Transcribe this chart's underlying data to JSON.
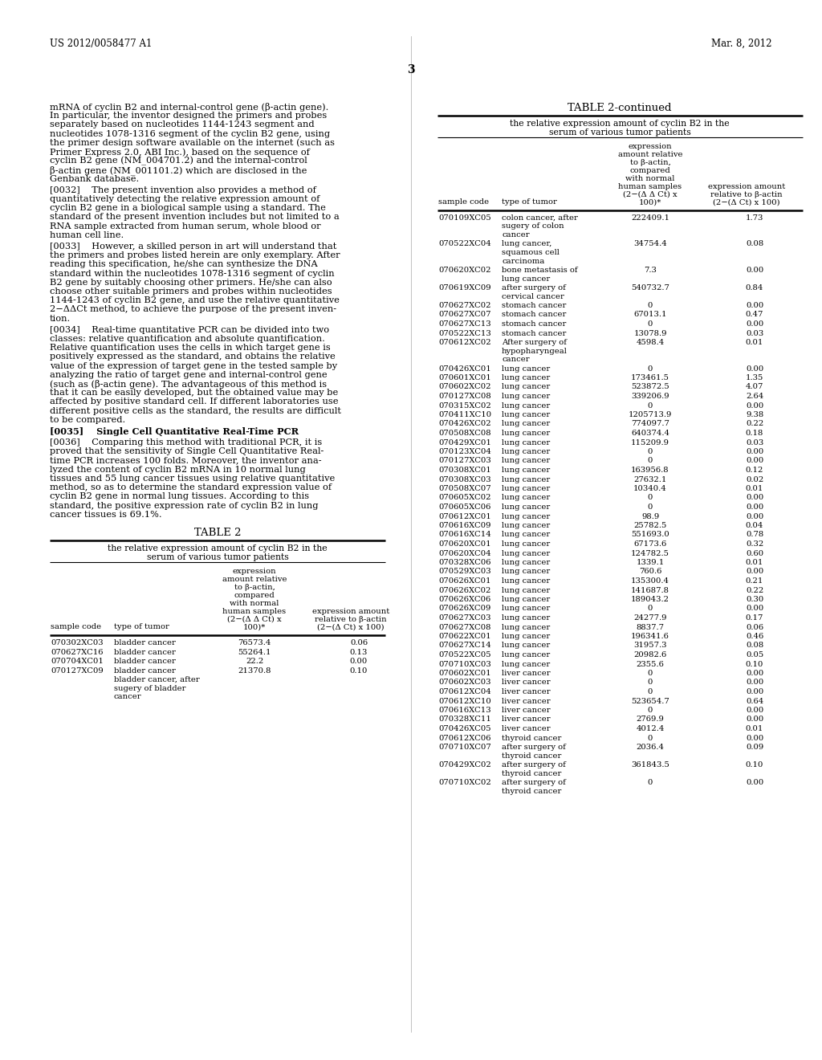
{
  "header_left": "US 2012/0058477 A1",
  "header_right": "Mar. 8, 2012",
  "page_number": "3",
  "bg_color": "#ffffff",
  "left_paragraphs": [
    "mRNA of cyclin B2 and internal-control gene (β-actin gene).\nIn particular, the inventor designed the primers and probes\nseparately based on nucleotides 1144-1243 segment and\nnucleotides 1078-1316 segment of the cyclin B2 gene, using\nthe primer design software available on the internet (such as\nPrimer Express 2.0, ABI Inc.), based on the sequence of\ncyclin B2 gene (NM_004701.2) and the internal-control\nβ-actin gene (NM_001101.2) which are disclosed in the\nGenbank database.",
    "[0032]    The present invention also provides a method of\nquantitatively detecting the relative expression amount of\ncyclin B2 gene in a biological sample using a standard. The\nstandard of the present invention includes but not limited to a\nRNA sample extracted from human serum, whole blood or\nhuman cell line.",
    "[0033]    However, a skilled person in art will understand that\nthe primers and probes listed herein are only exemplary. After\nreading this specification, he/she can synthesize the DNA\nstandard within the nucleotides 1078-1316 segment of cyclin\nB2 gene by suitably choosing other primers. He/she can also\nchoose other suitable primers and probes within nucleotides\n1144-1243 of cyclin B2 gene, and use the relative quantitative\n2−ΔΔCt method, to achieve the purpose of the present inven-\ntion.",
    "[0034]    Real-time quantitative PCR can be divided into two\nclasses: relative quantification and absolute quantification.\nRelative quantification uses the cells in which target gene is\npositively expressed as the standard, and obtains the relative\nvalue of the expression of target gene in the tested sample by\nanalyzing the ratio of target gene and internal-control gene\n(such as (β-actin gene). The advantageous of this method is\nthat it can be easily developed, but the obtained value may be\naffected by positive standard cell. If different laboratories use\ndifferent positive cells as the standard, the results are difficult\nto be compared.",
    "[0035]    Single Cell Quantitative Real-Time PCR",
    "[0036]    Comparing this method with traditional PCR, it is\nproved that the sensitivity of Single Cell Quantitative Real-\ntime PCR increases 100 folds. Moreover, the inventor ana-\nlyzed the content of cyclin B2 mRNA in 10 normal lung\ntissues and 55 lung cancer tissues using relative quantitative\nmethod, so as to determine the standard expression value of\ncyclin B2 gene in normal lung tissues. According to this\nstandard, the positive expression rate of cyclin B2 in lung\ncancer tissues is 69.1%."
  ],
  "table2_title": "TABLE 2",
  "table2_subtitle_1": "the relative expression amount of cyclin B2 in the",
  "table2_subtitle_2": "serum of various tumor patients",
  "table2cont_title": "TABLE 2-continued",
  "table2cont_subtitle_1": "the relative expression amount of cyclin B2 in the",
  "table2cont_subtitle_2": "serum of various tumor patients",
  "ch_expr": [
    "expression",
    "amount relative",
    "to β-actin,",
    "compared",
    "with normal",
    "human samples",
    "(2−(Δ Δ Ct) x",
    "100)*"
  ],
  "ch_expr2": [
    "expression amount",
    "relative to β-actin",
    "(2−(Δ Ct) x 100)"
  ],
  "table2_data": [
    [
      "070302XC03",
      "bladder cancer",
      "76573.4",
      "0.06"
    ],
    [
      "070627XC16",
      "bladder cancer",
      "55264.1",
      "0.13"
    ],
    [
      "070704XC01",
      "bladder cancer",
      "22.2",
      "0.00"
    ],
    [
      "070127XC09",
      "bladder cancer",
      "21370.8",
      "0.10"
    ],
    [
      "",
      "bladder cancer, after\nsugery of bladder\ncancer",
      "",
      ""
    ]
  ],
  "table_right_data": [
    [
      "070109XC05",
      "colon cancer, after\nsugery of colon\ncancer",
      "222409.1",
      "1.73"
    ],
    [
      "070522XC04",
      "lung cancer,\nsquamous cell\ncarcinoma",
      "34754.4",
      "0.08"
    ],
    [
      "070620XC02",
      "bone metastasis of\nlung cancer",
      "7.3",
      "0.00"
    ],
    [
      "070619XC09",
      "after surgery of\ncervical cancer",
      "540732.7",
      "0.84"
    ],
    [
      "070627XC02",
      "stomach cancer",
      "0",
      "0.00"
    ],
    [
      "070627XC07",
      "stomach cancer",
      "67013.1",
      "0.47"
    ],
    [
      "070627XC13",
      "stomach cancer",
      "0",
      "0.00"
    ],
    [
      "070522XC13",
      "stomach cancer",
      "13078.9",
      "0.03"
    ],
    [
      "070612XC02",
      "After surgery of\nhypopharyngeal\ncancer",
      "4598.4",
      "0.01"
    ],
    [
      "070426XC01",
      "lung cancer",
      "0",
      "0.00"
    ],
    [
      "070601XC01",
      "lung cancer",
      "173461.5",
      "1.35"
    ],
    [
      "070602XC02",
      "lung cancer",
      "523872.5",
      "4.07"
    ],
    [
      "070127XC08",
      "lung cancer",
      "339206.9",
      "2.64"
    ],
    [
      "070315XC02",
      "lung cancer",
      "0",
      "0.00"
    ],
    [
      "070411XC10",
      "lung cancer",
      "1205713.9",
      "9.38"
    ],
    [
      "070426XC02",
      "lung cancer",
      "774097.7",
      "0.22"
    ],
    [
      "070508XC08",
      "lung cancer",
      "640374.4",
      "0.18"
    ],
    [
      "070429XC01",
      "lung cancer",
      "115209.9",
      "0.03"
    ],
    [
      "070123XC04",
      "lung cancer",
      "0",
      "0.00"
    ],
    [
      "070127XC03",
      "lung cancer",
      "0",
      "0.00"
    ],
    [
      "070308XC01",
      "lung cancer",
      "163956.8",
      "0.12"
    ],
    [
      "070308XC03",
      "lung cancer",
      "27632.1",
      "0.02"
    ],
    [
      "070508XC07",
      "lung cancer",
      "10340.4",
      "0.01"
    ],
    [
      "070605XC02",
      "lung cancer",
      "0",
      "0.00"
    ],
    [
      "070605XC06",
      "lung cancer",
      "0",
      "0.00"
    ],
    [
      "070612XC01",
      "lung cancer",
      "98.9",
      "0.00"
    ],
    [
      "070616XC09",
      "lung cancer",
      "25782.5",
      "0.04"
    ],
    [
      "070616XC14",
      "lung cancer",
      "551693.0",
      "0.78"
    ],
    [
      "070620XC01",
      "lung cancer",
      "67173.6",
      "0.32"
    ],
    [
      "070620XC04",
      "lung cancer",
      "124782.5",
      "0.60"
    ],
    [
      "070328XC06",
      "lung cancer",
      "1339.1",
      "0.01"
    ],
    [
      "070529XC03",
      "lung cancer",
      "760.6",
      "0.00"
    ],
    [
      "070626XC01",
      "lung cancer",
      "135300.4",
      "0.21"
    ],
    [
      "070626XC02",
      "lung cancer",
      "141687.8",
      "0.22"
    ],
    [
      "070626XC06",
      "lung cancer",
      "189043.2",
      "0.30"
    ],
    [
      "070626XC09",
      "lung cancer",
      "0",
      "0.00"
    ],
    [
      "070627XC03",
      "lung cancer",
      "24277.9",
      "0.17"
    ],
    [
      "070627XC08",
      "lung cancer",
      "8837.7",
      "0.06"
    ],
    [
      "070622XC01",
      "lung cancer",
      "196341.6",
      "0.46"
    ],
    [
      "070627XC14",
      "lung cancer",
      "31957.3",
      "0.08"
    ],
    [
      "070522XC05",
      "lung cancer",
      "20982.6",
      "0.05"
    ],
    [
      "070710XC03",
      "lung cancer",
      "2355.6",
      "0.10"
    ],
    [
      "070602XC01",
      "liver cancer",
      "0",
      "0.00"
    ],
    [
      "070602XC03",
      "liver cancer",
      "0",
      "0.00"
    ],
    [
      "070612XC04",
      "liver cancer",
      "0",
      "0.00"
    ],
    [
      "070612XC10",
      "liver cancer",
      "523654.7",
      "0.64"
    ],
    [
      "070616XC13",
      "liver cancer",
      "0",
      "0.00"
    ],
    [
      "070328XC11",
      "liver cancer",
      "2769.9",
      "0.00"
    ],
    [
      "070426XC05",
      "liver cancer",
      "4012.4",
      "0.01"
    ],
    [
      "070612XC06",
      "thyroid cancer",
      "0",
      "0.00"
    ],
    [
      "070710XC07",
      "after surgery of\nthyroid cancer",
      "2036.4",
      "0.09"
    ],
    [
      "070429XC02",
      "after surgery of\nthyroid cancer",
      "361843.5",
      "0.10"
    ],
    [
      "070710XC02",
      "after surgery of\nthyroid cancer",
      "0",
      "0.00"
    ]
  ]
}
